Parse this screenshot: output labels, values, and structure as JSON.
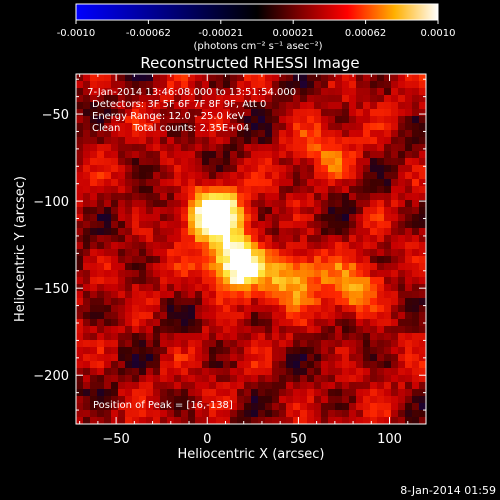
{
  "chart_data": {
    "type": "heatmap",
    "title": "Reconstructed RHESSI Image",
    "xlabel": "Heliocentric X (arcsec)",
    "ylabel": "Heliocentric Y (arcsec)",
    "xlim": [
      -72,
      120
    ],
    "ylim": [
      -228,
      -27
    ],
    "xticks": [
      -50,
      0,
      50,
      100
    ],
    "yticks": [
      -50,
      -100,
      -150,
      -200
    ],
    "info_lines": [
      " 7-Jan-2014 13:46:08.000 to 13:51:54.000",
      "Detectors: 3F 5F 6F 7F 8F 9F, Att 0",
      "Energy Range: 12.0 - 25.0 keV",
      "Clean    Total counts: 2.35E+04"
    ],
    "peak_label": "Position of Peak = [16,-138]",
    "peak_position": [
      16,
      -138
    ],
    "colorbar": {
      "range": [
        -0.001,
        0.001
      ],
      "tick_labels": [
        "-0.0010",
        "-0.00062",
        "-0.00021",
        "0.00021",
        "0.00062",
        "0.0010"
      ],
      "units": "(photons cm⁻² s⁻¹ asec⁻²)",
      "colors": [
        "#0000ff",
        "#000000",
        "#ff0000",
        "#ffd000",
        "#ffffff"
      ]
    },
    "sources": [
      {
        "x": 4,
        "y": -108,
        "intensity": 1.0
      },
      {
        "x": 16,
        "y": -138,
        "intensity": 1.0
      },
      {
        "x": 48,
        "y": -143,
        "intensity": 0.55
      },
      {
        "x": 82,
        "y": -151,
        "intensity": 0.45
      },
      {
        "x": 66,
        "y": -70,
        "intensity": 0.3
      }
    ],
    "timestamp": "8-Jan-2014 01:59"
  }
}
